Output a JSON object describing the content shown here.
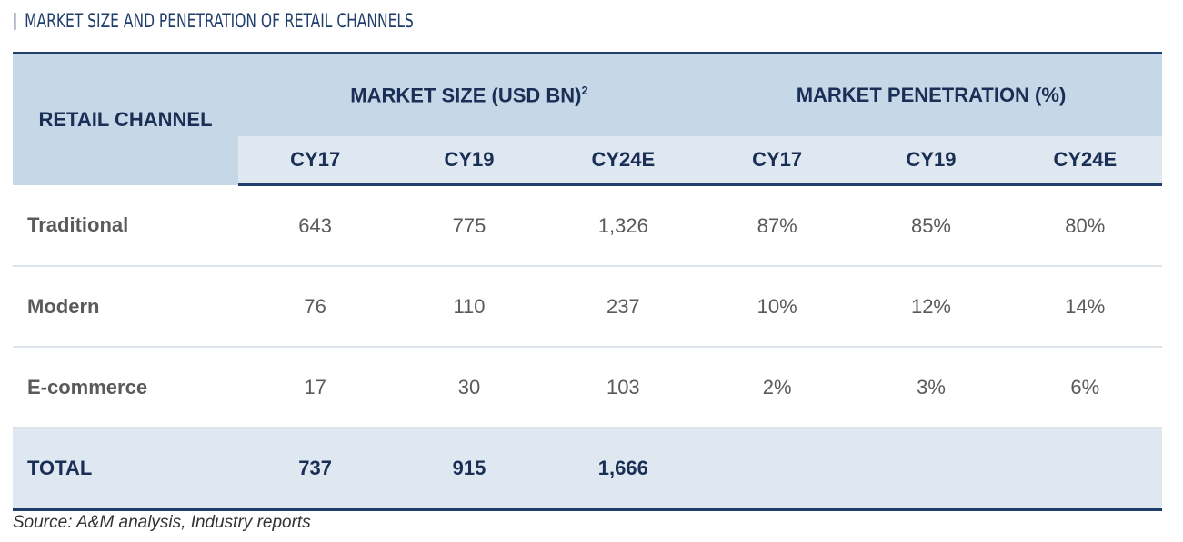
{
  "title": "MARKET SIZE AND PENETRATION OF RETAIL CHANNELS",
  "table": {
    "corner": "RETAIL CHANNEL",
    "groups": [
      {
        "label": "MARKET SIZE (USD BN)",
        "sup": "2"
      },
      {
        "label": "MARKET PENETRATION (%)"
      }
    ],
    "subheaders": [
      "CY17",
      "CY19",
      "CY24E",
      "CY17",
      "CY19",
      "CY24E"
    ],
    "rows": [
      [
        "Traditional",
        "643",
        "775",
        "1,326",
        "87%",
        "85%",
        "80%"
      ],
      [
        "Modern",
        "76",
        "110",
        "237",
        "10%",
        "12%",
        "14%"
      ],
      [
        "E-commerce",
        "17",
        "30",
        "103",
        "2%",
        "3%",
        "6%"
      ]
    ],
    "total": [
      "TOTAL",
      "737",
      "915",
      "1,666"
    ]
  },
  "source": "Source: A&M analysis, Industry reports"
}
